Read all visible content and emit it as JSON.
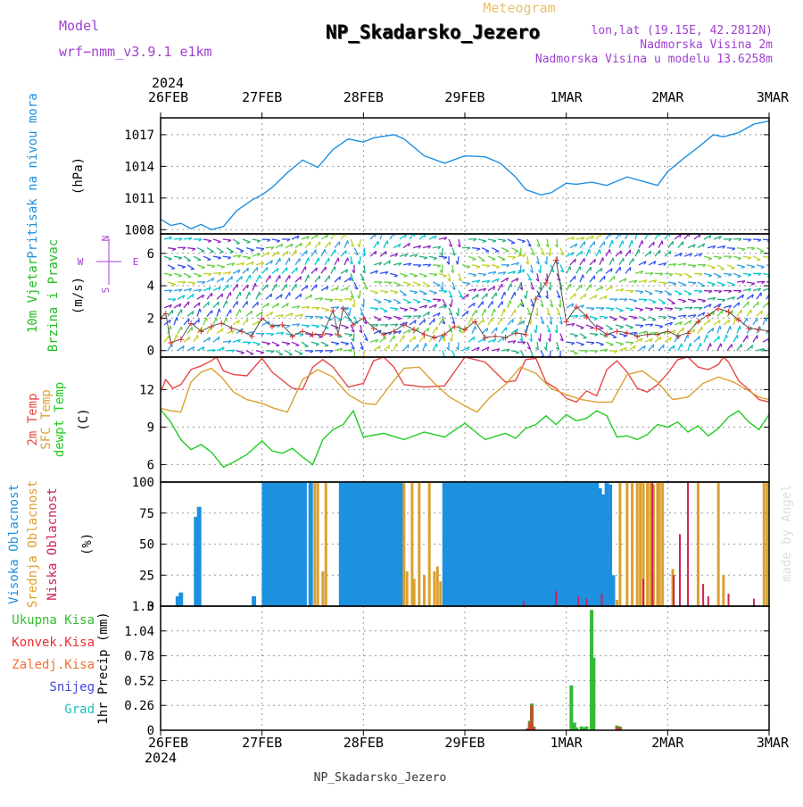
{
  "header": {
    "model_label": "Model",
    "model_name": "wrf−nmm_v3.9.1  e1km",
    "supertitle": "Meteogram",
    "title": "NP_Skadarsko_Jezero",
    "location": "lon,lat (19.15E, 42.2812N)",
    "elevation": "Nadmorska Visina 2m",
    "model_elevation": "Nadmorska Visina u modelu 13.6258m",
    "footer": "NP_Skadarsko_Jezero",
    "credit": "made by Angel"
  },
  "colors": {
    "pressure": "#1e90e0",
    "wind_label": "#22bb22",
    "wind_compass": "#a040d0",
    "temp2m": "#e84848",
    "sfc_temp": "#dca030",
    "dewpoint": "#22cc22",
    "cloud_high": "#1e90e0",
    "cloud_mid": "#dca030",
    "cloud_low": "#cc2255",
    "precip_total": "#33bb33",
    "precip_conv": "#e83030",
    "precip_frz": "#f07030",
    "precip_snow": "#4444dd",
    "precip_hail": "#22bbbb"
  },
  "time_axis": {
    "year": "2024",
    "labels": [
      "26FEB",
      "27FEB",
      "28FEB",
      "29FEB",
      "1MAR",
      "2MAR",
      "3MAR"
    ],
    "x_days": [
      0,
      1,
      2,
      3,
      4,
      5,
      6
    ]
  },
  "chart_data": [
    {
      "type": "line",
      "id": "pressure",
      "ylabel_lines": [
        "Pritisak na nivou mora"
      ],
      "unit": "(hPa)",
      "ylim": [
        1007.6,
        1018.6
      ],
      "yticks": [
        1008,
        1011,
        1014,
        1017
      ],
      "grid": true,
      "series": [
        {
          "x": [
            0,
            0.1,
            0.2,
            0.3,
            0.4,
            0.5,
            0.62,
            0.75,
            0.9,
            1.0,
            1.1,
            1.25,
            1.4,
            1.55,
            1.7,
            1.85,
            2.0,
            2.1,
            2.3,
            2.4,
            2.6,
            2.8,
            3.0,
            3.2,
            3.35,
            3.5,
            3.6,
            3.75,
            3.85,
            4.0,
            4.1,
            4.25,
            4.4,
            4.6,
            4.75,
            4.9,
            5.0,
            5.15,
            5.3,
            5.45,
            5.55,
            5.7,
            5.85,
            6.0
          ],
          "y": [
            1009.0,
            1008.4,
            1008.6,
            1008.1,
            1008.5,
            1008.0,
            1008.3,
            1009.8,
            1010.8,
            1011.3,
            1012.0,
            1013.4,
            1014.6,
            1013.9,
            1015.6,
            1016.6,
            1016.3,
            1016.7,
            1017.0,
            1016.6,
            1015.0,
            1014.3,
            1015.0,
            1014.9,
            1014.3,
            1013.0,
            1011.8,
            1011.3,
            1011.5,
            1012.4,
            1012.3,
            1012.5,
            1012.2,
            1013.0,
            1012.6,
            1012.2,
            1013.5,
            1014.7,
            1015.8,
            1017.0,
            1016.8,
            1017.2,
            1018.0,
            1018.3
          ]
        }
      ]
    },
    {
      "type": "scatter",
      "id": "wind",
      "ylabel_lines": [
        "10m Vjetar",
        "Brzina i Pravac"
      ],
      "unit": "(m/s)",
      "ylim": [
        -0.4,
        7.2
      ],
      "yticks": [
        0,
        2,
        4,
        6
      ],
      "grid": true,
      "compass": [
        "N",
        "E",
        "S",
        "W"
      ],
      "series": [
        {
          "name": "speed",
          "x": [
            0.0,
            0.05,
            0.1,
            0.2,
            0.3,
            0.4,
            0.5,
            0.6,
            0.7,
            0.8,
            0.9,
            1.0,
            1.1,
            1.2,
            1.3,
            1.4,
            1.5,
            1.6,
            1.7,
            1.75,
            1.8,
            1.9,
            2.0,
            2.1,
            2.2,
            2.3,
            2.4,
            2.5,
            2.6,
            2.7,
            2.8,
            2.9,
            3.0,
            3.1,
            3.2,
            3.3,
            3.4,
            3.5,
            3.6,
            3.7,
            3.8,
            3.9,
            4.0,
            4.1,
            4.2,
            4.3,
            4.4,
            4.5,
            4.6,
            4.7,
            4.8,
            4.9,
            5.0,
            5.1,
            5.2,
            5.3,
            5.4,
            5.5,
            5.6,
            5.7,
            5.8,
            5.9,
            6.0
          ],
          "y": [
            2.0,
            2.3,
            0.5,
            0.7,
            1.7,
            1.2,
            1.5,
            1.7,
            1.4,
            1.2,
            0.9,
            2.0,
            1.5,
            1.6,
            0.9,
            1.2,
            1.0,
            1.0,
            2.5,
            1.0,
            2.6,
            1.6,
            2.0,
            1.4,
            1.0,
            1.2,
            1.6,
            1.3,
            1.0,
            0.8,
            1.0,
            1.5,
            1.3,
            1.8,
            0.8,
            0.9,
            0.8,
            1.1,
            1.0,
            3.2,
            4.2,
            5.6,
            1.8,
            2.7,
            2.1,
            1.4,
            1.0,
            1.2,
            1.1,
            0.9,
            1.0,
            1.0,
            1.2,
            0.9,
            1.1,
            1.8,
            2.2,
            2.6,
            2.4,
            1.9,
            1.4,
            1.3,
            1.2
          ]
        }
      ]
    },
    {
      "type": "line",
      "id": "temperature",
      "ylabel_lines": [
        "2m Temp",
        "SFC Temp",
        "dewpt Temp"
      ],
      "unit": "(C)",
      "ylim": [
        4.6,
        14.6
      ],
      "yticks": [
        6,
        9,
        12
      ],
      "grid": true,
      "series": [
        {
          "name": "2m Temp",
          "x": [
            0,
            0.05,
            0.12,
            0.2,
            0.3,
            0.4,
            0.5,
            0.55,
            0.62,
            0.72,
            0.85,
            1.0,
            1.1,
            1.3,
            1.4,
            1.5,
            1.6,
            1.7,
            1.85,
            2.0,
            2.1,
            2.2,
            2.3,
            2.4,
            2.6,
            2.8,
            3.0,
            3.2,
            3.4,
            3.5,
            3.6,
            3.7,
            3.8,
            3.9,
            4.0,
            4.1,
            4.2,
            4.3,
            4.4,
            4.5,
            4.6,
            4.7,
            4.8,
            4.9,
            5.0,
            5.1,
            5.2,
            5.3,
            5.4,
            5.5,
            5.55,
            5.6,
            5.7,
            5.8,
            5.9,
            6.0
          ],
          "y": [
            11.8,
            12.8,
            12.1,
            12.4,
            13.6,
            13.9,
            14.3,
            14.6,
            13.5,
            13.2,
            13.1,
            14.5,
            13.4,
            12.1,
            12.0,
            13.8,
            14.4,
            13.8,
            12.2,
            12.5,
            14.3,
            14.6,
            13.8,
            12.4,
            12.2,
            12.3,
            14.6,
            14.2,
            12.6,
            12.7,
            14.4,
            14.5,
            12.6,
            12.1,
            11.3,
            11.0,
            11.9,
            11.5,
            13.6,
            14.3,
            13.4,
            12.1,
            11.8,
            12.4,
            13.3,
            14.4,
            14.6,
            13.8,
            13.6,
            14.0,
            14.6,
            14.2,
            12.7,
            12.0,
            11.2,
            11.0
          ]
        },
        {
          "name": "SFC Temp",
          "x": [
            0,
            0.1,
            0.2,
            0.3,
            0.4,
            0.5,
            0.6,
            0.72,
            0.85,
            1.0,
            1.12,
            1.25,
            1.4,
            1.55,
            1.7,
            1.85,
            2.0,
            2.12,
            2.25,
            2.4,
            2.55,
            2.7,
            2.85,
            3.0,
            3.12,
            3.25,
            3.4,
            3.55,
            3.7,
            3.85,
            4.0,
            4.15,
            4.3,
            4.45,
            4.6,
            4.75,
            4.9,
            5.05,
            5.2,
            5.35,
            5.5,
            5.65,
            5.8,
            5.9,
            6.0
          ],
          "y": [
            10.5,
            10.3,
            10.2,
            12.6,
            13.4,
            13.7,
            13.0,
            11.8,
            11.2,
            10.9,
            10.5,
            10.2,
            12.8,
            13.6,
            13.0,
            11.6,
            10.9,
            10.8,
            12.2,
            13.7,
            13.8,
            12.5,
            11.4,
            10.7,
            10.2,
            11.4,
            12.4,
            13.8,
            13.3,
            12.1,
            11.6,
            11.2,
            11.0,
            11.0,
            13.2,
            13.5,
            12.6,
            11.2,
            11.4,
            12.5,
            13.0,
            12.6,
            11.9,
            11.4,
            11.2
          ]
        },
        {
          "name": "dewpt Temp",
          "x": [
            0,
            0.1,
            0.2,
            0.3,
            0.4,
            0.5,
            0.62,
            0.72,
            0.85,
            1.0,
            1.1,
            1.2,
            1.3,
            1.4,
            1.5,
            1.6,
            1.7,
            1.8,
            1.9,
            2.0,
            2.2,
            2.4,
            2.6,
            2.8,
            3.0,
            3.2,
            3.4,
            3.5,
            3.6,
            3.7,
            3.8,
            3.9,
            4.0,
            4.1,
            4.2,
            4.3,
            4.4,
            4.5,
            4.6,
            4.7,
            4.8,
            4.9,
            5.0,
            5.1,
            5.2,
            5.3,
            5.4,
            5.5,
            5.6,
            5.7,
            5.8,
            5.9,
            6.0
          ],
          "y": [
            10.4,
            9.4,
            8.0,
            7.2,
            7.6,
            7.0,
            5.8,
            6.2,
            6.8,
            7.9,
            7.1,
            6.9,
            7.3,
            6.6,
            6.0,
            8.0,
            8.8,
            9.2,
            10.3,
            8.2,
            8.5,
            8.0,
            8.6,
            8.2,
            9.3,
            8.0,
            8.5,
            8.1,
            8.9,
            9.2,
            9.9,
            9.2,
            10.0,
            9.5,
            9.7,
            10.3,
            9.9,
            8.2,
            8.3,
            8.0,
            8.4,
            9.2,
            9.0,
            9.4,
            8.6,
            9.1,
            8.3,
            8.9,
            9.8,
            10.3,
            9.4,
            8.8,
            10.0
          ]
        }
      ]
    },
    {
      "type": "bar",
      "id": "clouds",
      "ylabel_lines": [
        "Visoka Oblacnost",
        "Srednja Oblacnost",
        "Niska Oblacnost"
      ],
      "unit": "(%)",
      "ylim": [
        0,
        100
      ],
      "yticks": [
        0,
        25,
        50,
        75,
        100
      ],
      "grid": true,
      "series": [
        {
          "name": "Visoka Oblacnost",
          "x": [
            0.17,
            0.2,
            0.35,
            0.38,
            0.92,
            1.02,
            1.05,
            1.08,
            1.12,
            1.15,
            1.18,
            1.22,
            1.25,
            1.28,
            1.32,
            1.35,
            1.38,
            1.42,
            1.48,
            1.78,
            1.82,
            1.85,
            1.88,
            1.92,
            1.95,
            1.98,
            2.02,
            2.05,
            2.08,
            2.12,
            2.15,
            2.18,
            2.22,
            2.25,
            2.28,
            2.32,
            2.35,
            2.38,
            2.8,
            2.83,
            2.86,
            2.9,
            2.93,
            2.96,
            3.0,
            3.03,
            3.06,
            3.1,
            3.13,
            3.16,
            3.2,
            3.23,
            3.26,
            3.3,
            3.33,
            3.36,
            3.4,
            3.43,
            3.46,
            3.5,
            3.53,
            3.56,
            3.6,
            3.63,
            3.66,
            3.7,
            3.73,
            3.76,
            3.8,
            3.83,
            3.86,
            3.9,
            3.93,
            3.96,
            4.0,
            4.03,
            4.06,
            4.1,
            4.13,
            4.16,
            4.2,
            4.23,
            4.26,
            4.3,
            4.33,
            4.36,
            4.4,
            4.43,
            4.46
          ],
          "y": [
            8,
            11,
            72,
            80,
            8,
            100,
            100,
            100,
            100,
            100,
            100,
            100,
            100,
            100,
            100,
            100,
            100,
            100,
            100,
            100,
            100,
            100,
            100,
            100,
            100,
            100,
            100,
            100,
            100,
            100,
            100,
            100,
            100,
            100,
            100,
            100,
            100,
            100,
            100,
            100,
            100,
            100,
            100,
            100,
            100,
            100,
            100,
            100,
            100,
            100,
            100,
            100,
            100,
            100,
            100,
            100,
            100,
            100,
            100,
            100,
            100,
            100,
            100,
            100,
            100,
            100,
            100,
            100,
            100,
            100,
            100,
            100,
            100,
            100,
            100,
            100,
            100,
            100,
            100,
            100,
            100,
            100,
            100,
            100,
            95,
            90,
            100,
            98,
            25
          ]
        },
        {
          "name": "Srednja Oblacnost",
          "x": [
            1.52,
            1.55,
            1.6,
            1.63,
            2.4,
            2.43,
            2.48,
            2.5,
            2.55,
            2.6,
            2.65,
            2.7,
            2.73,
            2.76,
            4.5,
            4.53,
            4.6,
            4.65,
            4.7,
            4.73,
            4.76,
            4.8,
            4.83,
            4.86,
            4.9,
            4.92,
            4.95,
            5.05,
            5.3,
            5.5,
            5.55,
            5.95,
            5.98
          ],
          "y": [
            100,
            100,
            28,
            100,
            100,
            28,
            100,
            22,
            100,
            25,
            100,
            28,
            32,
            20,
            5,
            100,
            100,
            100,
            100,
            100,
            100,
            100,
            100,
            98,
            100,
            100,
            100,
            30,
            100,
            100,
            25,
            100,
            100
          ]
        },
        {
          "name": "Niska Oblacnost",
          "x": [
            3.58,
            3.9,
            4.12,
            4.2,
            4.35,
            4.76,
            4.85,
            5.06,
            5.12,
            5.2,
            5.35,
            5.4,
            5.6,
            5.85
          ],
          "y": [
            4,
            12,
            8,
            6,
            10,
            22,
            100,
            25,
            58,
            100,
            18,
            8,
            10,
            6
          ]
        }
      ]
    },
    {
      "type": "bar",
      "id": "precip",
      "ylabel_lines": [
        "Ukupna Kisa",
        "Konvek.Kisa",
        "Zaledj.Kisa",
        "Snijeg",
        "Grad"
      ],
      "unit": "1hr Precip (mm)",
      "ylim": [
        0,
        1.3
      ],
      "yticks": [
        0,
        0.26,
        0.52,
        0.78,
        1.04,
        1.3
      ],
      "grid": true,
      "series": [
        {
          "name": "Ukupna Kisa",
          "x": [
            3.62,
            3.64,
            3.66,
            3.68,
            4.05,
            4.08,
            4.1,
            4.15,
            4.18,
            4.2,
            4.25,
            4.27,
            4.5,
            4.53
          ],
          "y": [
            0.02,
            0.1,
            0.28,
            0.04,
            0.47,
            0.08,
            0.03,
            0.04,
            0.03,
            0.04,
            1.26,
            0.76,
            0.05,
            0.04
          ]
        },
        {
          "name": "Konvek.Kisa",
          "x": [
            3.62,
            3.64,
            3.66,
            3.68,
            4.5,
            4.53
          ],
          "y": [
            0.02,
            0.08,
            0.26,
            0.03,
            0.04,
            0.03
          ]
        }
      ]
    }
  ]
}
